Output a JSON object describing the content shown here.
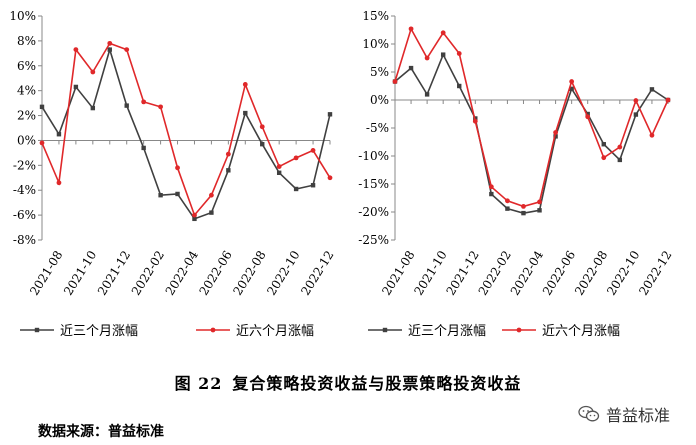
{
  "chart_data": [
    {
      "type": "line",
      "categories": [
        "2021-07",
        "2021-08",
        "2021-09",
        "2021-10",
        "2021-11",
        "2021-12",
        "2022-01",
        "2022-02",
        "2022-03",
        "2022-04",
        "2022-05",
        "2022-06",
        "2022-07",
        "2022-08",
        "2022-09",
        "2022-10",
        "2022-11",
        "2022-12"
      ],
      "tick_labels": [
        "2021-08",
        "2021-10",
        "2021-12",
        "2022-02",
        "2022-04",
        "2022-06",
        "2022-08",
        "2022-10",
        "2022-12"
      ],
      "y_ticks": [
        "10%",
        "8%",
        "6%",
        "4%",
        "2%",
        "0%",
        "-2%",
        "-4%",
        "-6%",
        "-8%"
      ],
      "ylim": [
        -8,
        10
      ],
      "ystep": 2,
      "series": [
        {
          "name": "近三个月涨幅",
          "color": "#404040",
          "marker": "square",
          "values": [
            2.7,
            0.5,
            4.3,
            2.6,
            7.3,
            2.8,
            -0.6,
            -4.4,
            -4.3,
            -6.3,
            -5.8,
            -2.4,
            2.2,
            -0.3,
            -2.6,
            -3.9,
            -3.6,
            2.1
          ]
        },
        {
          "name": "近六个月涨幅",
          "color": "#e0282a",
          "marker": "circle",
          "values": [
            -0.2,
            -3.4,
            7.3,
            5.5,
            7.8,
            7.3,
            3.1,
            2.7,
            -2.2,
            -6.0,
            -4.4,
            -1.1,
            4.5,
            1.1,
            -2.1,
            -1.4,
            -0.8,
            -3.0
          ]
        }
      ]
    },
    {
      "type": "line",
      "categories": [
        "2021-07",
        "2021-08",
        "2021-09",
        "2021-10",
        "2021-11",
        "2021-12",
        "2022-01",
        "2022-02",
        "2022-03",
        "2022-04",
        "2022-05",
        "2022-06",
        "2022-07",
        "2022-08",
        "2022-09",
        "2022-10",
        "2022-11",
        "2022-12"
      ],
      "tick_labels": [
        "2021-08",
        "2021-10",
        "2021-12",
        "2022-02",
        "2022-04",
        "2022-06",
        "2022-08",
        "2022-10",
        "2022-12"
      ],
      "y_ticks": [
        "15%",
        "10%",
        "5%",
        "0%",
        "-5%",
        "-10%",
        "-15%",
        "-20%",
        "-25%"
      ],
      "ylim": [
        -25,
        15
      ],
      "ystep": 5,
      "series": [
        {
          "name": "近三个月涨幅",
          "color": "#404040",
          "marker": "square",
          "values": [
            3.3,
            5.7,
            1.0,
            8.1,
            2.5,
            -3.3,
            -16.8,
            -19.4,
            -20.2,
            -19.7,
            -6.5,
            2.0,
            -2.5,
            -7.9,
            -10.7,
            -2.6,
            1.9,
            0
          ]
        },
        {
          "name": "近六个月涨幅",
          "color": "#e0282a",
          "marker": "circle",
          "values": [
            3.3,
            12.7,
            7.5,
            12.0,
            8.3,
            -3.8,
            -15.5,
            -18.0,
            -19.0,
            -18.2,
            -5.8,
            3.3,
            -3.0,
            -10.3,
            -8.4,
            -0.1,
            -6.3,
            0
          ]
        }
      ]
    }
  ],
  "caption": {
    "label": "图 22",
    "text": "复合策略投资收益与股票策略投资收益"
  },
  "source": "数据来源：普益标准",
  "watermark": "普益标准"
}
